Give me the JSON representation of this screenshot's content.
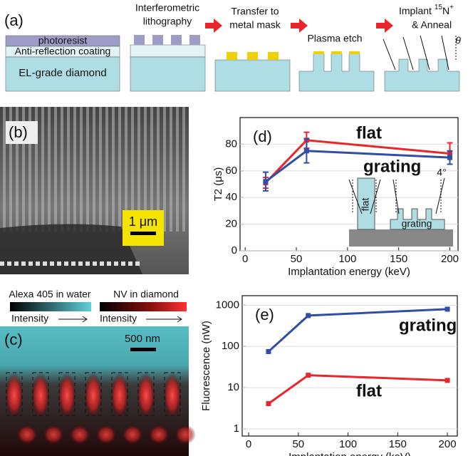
{
  "panel_a": {
    "label": "(a)",
    "layers": [
      "photoresist",
      "Anti-reflection coating",
      "EL-grade diamond"
    ],
    "step1": [
      "Interferometric",
      "lithography"
    ],
    "step2": [
      "Transfer to",
      "metal mask"
    ],
    "step3": "Plasma etch",
    "step4": {
      "prefix": "Implant ",
      "isotope": "15",
      "element": "N",
      "charge": "+",
      "line2": "& Anneal"
    },
    "angle": "θ"
  },
  "panel_b": {
    "label": "(b)",
    "scale": "1 μm"
  },
  "panel_c": {
    "label": "(c)",
    "colorbar1": "Alexa 405 in water",
    "colorbar2": "NV in diamond",
    "intensity": "Intensity",
    "scale": "500 nm"
  },
  "chart_data": [
    {
      "type": "line",
      "label": "(d)",
      "x_label": "Implantation energy (keV)",
      "y_label": "T2 (μs)",
      "x": [
        20,
        60,
        200
      ],
      "series": [
        {
          "name": "flat",
          "color": "#e8262b",
          "values": [
            51,
            83,
            73
          ],
          "errors": [
            4,
            6,
            8
          ]
        },
        {
          "name": "grating",
          "color": "#2e4fa3",
          "values": [
            52,
            75,
            70
          ],
          "errors": [
            7,
            9,
            5
          ]
        }
      ],
      "xlim": [
        -5,
        208
      ],
      "xticks": [
        0,
        50,
        100,
        150,
        200
      ],
      "ylim": [
        0,
        100
      ],
      "yticks": [
        0,
        20,
        40,
        60,
        80
      ],
      "log_y": false,
      "inset_labels": [
        "flat",
        "grating",
        "4°"
      ]
    },
    {
      "type": "line",
      "label": "(e)",
      "x_label": "Implantation energy (keV)",
      "y_label": "Fluorescence (nW)",
      "x": [
        20,
        60,
        200
      ],
      "series": [
        {
          "name": "grating",
          "color": "#2e4fa3",
          "values": [
            75,
            560,
            800
          ]
        },
        {
          "name": "flat",
          "color": "#e8262b",
          "values": [
            4.1,
            20,
            15
          ]
        }
      ],
      "xlim": [
        -6.5,
        210
      ],
      "xticks": [
        0,
        50,
        100,
        150,
        200
      ],
      "ylim": [
        0.67,
        1700
      ],
      "yticks": [
        1,
        10,
        100,
        1000
      ],
      "log_y": true
    }
  ]
}
